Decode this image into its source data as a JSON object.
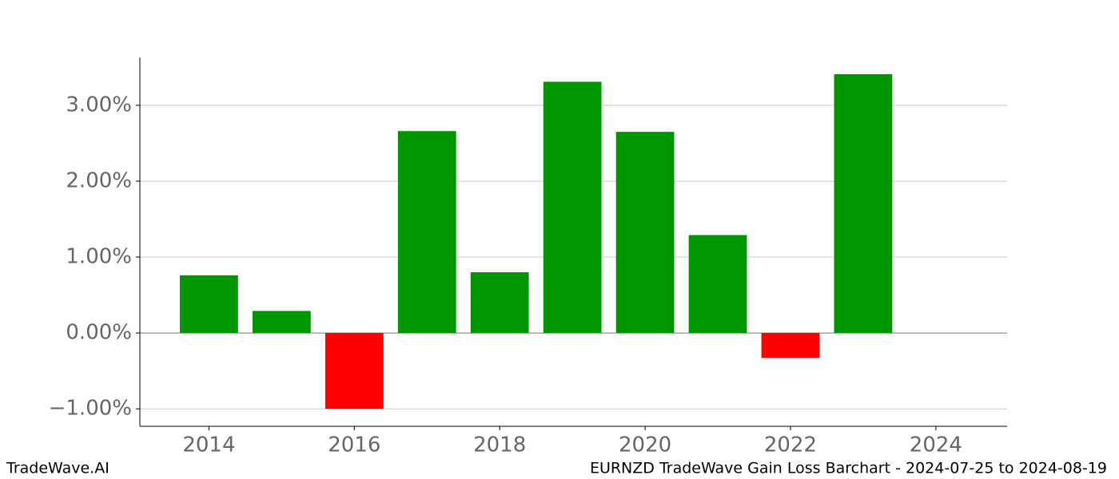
{
  "chart_data": {
    "type": "bar",
    "title": "EURNZD TradeWave Gain Loss Barchart - 2024-07-25 to 2024-08-19",
    "watermark": "TradeWave.AI",
    "x": [
      2014,
      2015,
      2016,
      2017,
      2018,
      2019,
      2020,
      2021,
      2022,
      2023
    ],
    "values": [
      0.76,
      0.29,
      -1.0,
      2.66,
      0.8,
      3.31,
      2.65,
      1.29,
      -0.33,
      3.41
    ],
    "color_positive": "#009600",
    "color_negative": "#ff0000",
    "xlim": [
      2013.05,
      2024.98
    ],
    "xticks": [
      2014,
      2016,
      2018,
      2020,
      2022,
      2024
    ],
    "ylim": [
      -1.23,
      3.63
    ],
    "yticks": [
      {
        "value": -1,
        "label": "−1.00%"
      },
      {
        "value": 0,
        "label": "0.00%"
      },
      {
        "value": 1,
        "label": "1.00%"
      },
      {
        "value": 2,
        "label": "2.00%"
      },
      {
        "value": 3,
        "label": "3.00%"
      }
    ],
    "grid": true
  }
}
